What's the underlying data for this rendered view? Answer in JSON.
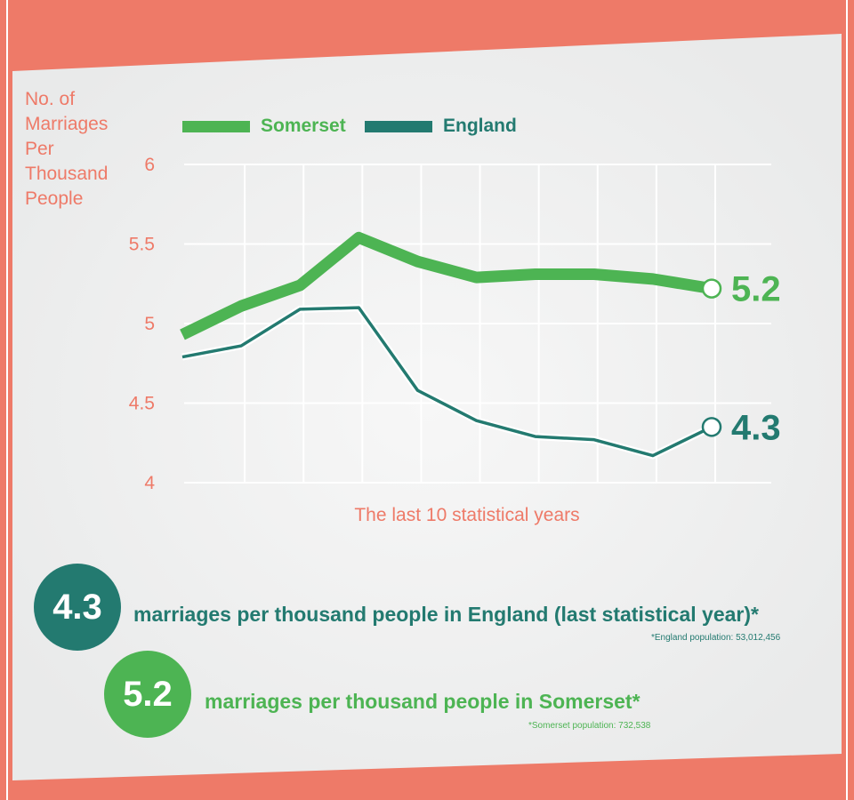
{
  "colors": {
    "frame": "#ee7a68",
    "panel": "#eeefef",
    "somerset": "#4db453",
    "england": "#237a70",
    "axis_text": "#ee7a68",
    "grid": "#ffffff"
  },
  "chart_data": {
    "type": "line",
    "ylabel": "No. of\nMarriages\nPer\nThousand\nPeople",
    "xlabel": "The last 10 statistical years",
    "ylim": [
      4,
      6
    ],
    "yticks": [
      "6",
      "5.5",
      "5",
      "4.5",
      "4"
    ],
    "grid": true,
    "legend_position": "top",
    "series": [
      {
        "name": "Somerset",
        "values": [
          4.93,
          5.11,
          5.24,
          5.54,
          5.39,
          5.29,
          5.31,
          5.31,
          5.28,
          5.22
        ],
        "end_label": "5.2"
      },
      {
        "name": "England",
        "values": [
          4.79,
          4.86,
          5.09,
          5.1,
          4.58,
          4.39,
          4.29,
          4.27,
          4.17,
          4.35
        ],
        "end_label": "4.3"
      }
    ]
  },
  "stats": {
    "england": {
      "value": "4.3",
      "text": "marriages per thousand people in England (last statistical year)*",
      "footnote": "*England population: 53,012,456"
    },
    "somerset": {
      "value": "5.2",
      "text": "marriages per thousand people in Somerset*",
      "footnote": "*Somerset population: 732,538"
    }
  }
}
